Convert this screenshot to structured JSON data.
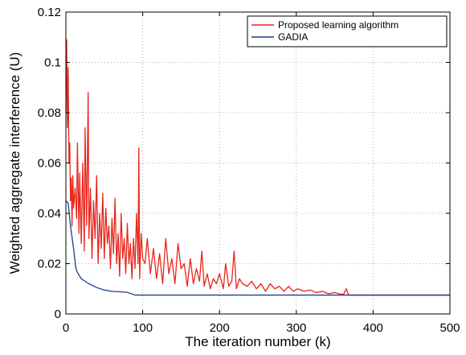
{
  "chart_data": {
    "type": "line",
    "title": "",
    "xlabel": "The iteration number (k)",
    "ylabel": "Weighted aggregate interference (U)",
    "xlim": [
      0,
      500
    ],
    "ylim": [
      0,
      0.12
    ],
    "xticks": [
      0,
      100,
      200,
      300,
      400,
      500
    ],
    "xtick_labels": [
      "0",
      "100",
      "200",
      "300",
      "400",
      "500"
    ],
    "yticks": [
      0,
      0.02,
      0.04,
      0.06,
      0.08,
      0.1,
      0.12
    ],
    "ytick_labels": [
      "0",
      "0.02",
      "0.04",
      "0.06",
      "0.08",
      "0.1",
      "0.12"
    ],
    "grid": true,
    "legend_position": "top-right",
    "series": [
      {
        "name": "Proposed  learning algorithm",
        "color": "#e8261b",
        "x": [
          0,
          1,
          2,
          3,
          4,
          5,
          6,
          7,
          8,
          9,
          10,
          12,
          14,
          15,
          17,
          18,
          20,
          22,
          24,
          25,
          27,
          29,
          30,
          32,
          34,
          36,
          38,
          40,
          42,
          44,
          46,
          48,
          50,
          52,
          54,
          56,
          58,
          60,
          62,
          64,
          66,
          68,
          70,
          72,
          74,
          76,
          78,
          80,
          82,
          84,
          86,
          88,
          90,
          92,
          94,
          95,
          96,
          98,
          100,
          103,
          106,
          110,
          114,
          118,
          122,
          126,
          130,
          134,
          138,
          142,
          146,
          150,
          154,
          158,
          162,
          166,
          170,
          174,
          177,
          180,
          184,
          188,
          192,
          196,
          200,
          205,
          208,
          212,
          216,
          219,
          222,
          226,
          230,
          236,
          242,
          248,
          254,
          260,
          266,
          272,
          278,
          284,
          290,
          296,
          302,
          310,
          318,
          326,
          334,
          342,
          350,
          358,
          362,
          365,
          368,
          380,
          400,
          420,
          440,
          460,
          480,
          500
        ],
        "y": [
          0.08,
          0.109,
          0.074,
          0.098,
          0.06,
          0.068,
          0.045,
          0.054,
          0.035,
          0.055,
          0.042,
          0.05,
          0.038,
          0.068,
          0.032,
          0.056,
          0.028,
          0.06,
          0.025,
          0.074,
          0.035,
          0.088,
          0.03,
          0.05,
          0.022,
          0.045,
          0.03,
          0.055,
          0.02,
          0.04,
          0.026,
          0.048,
          0.022,
          0.042,
          0.028,
          0.035,
          0.018,
          0.038,
          0.024,
          0.046,
          0.02,
          0.032,
          0.015,
          0.04,
          0.022,
          0.03,
          0.016,
          0.036,
          0.02,
          0.028,
          0.014,
          0.03,
          0.018,
          0.04,
          0.02,
          0.066,
          0.014,
          0.032,
          0.022,
          0.02,
          0.03,
          0.016,
          0.026,
          0.014,
          0.024,
          0.012,
          0.03,
          0.016,
          0.022,
          0.012,
          0.028,
          0.018,
          0.02,
          0.011,
          0.022,
          0.012,
          0.018,
          0.013,
          0.025,
          0.011,
          0.016,
          0.01,
          0.014,
          0.012,
          0.016,
          0.01,
          0.02,
          0.011,
          0.013,
          0.025,
          0.01,
          0.014,
          0.012,
          0.011,
          0.013,
          0.01,
          0.012,
          0.009,
          0.012,
          0.01,
          0.011,
          0.009,
          0.011,
          0.009,
          0.01,
          0.009,
          0.0095,
          0.0085,
          0.009,
          0.008,
          0.0085,
          0.0078,
          0.008,
          0.01,
          0.0075,
          0.0075,
          0.0075,
          0.0075,
          0.0075,
          0.0075,
          0.0075,
          0.0075
        ]
      },
      {
        "name": "GADIA",
        "color": "#1f3a93",
        "x": [
          0,
          3,
          6,
          10,
          13,
          15,
          20,
          30,
          40,
          50,
          60,
          70,
          80,
          90,
          100,
          150,
          200,
          300,
          400,
          500
        ],
        "y": [
          0.045,
          0.044,
          0.035,
          0.026,
          0.018,
          0.0165,
          0.014,
          0.012,
          0.0105,
          0.0095,
          0.009,
          0.0088,
          0.0086,
          0.0075,
          0.0075,
          0.0075,
          0.0075,
          0.0075,
          0.0075,
          0.0075
        ]
      }
    ]
  }
}
